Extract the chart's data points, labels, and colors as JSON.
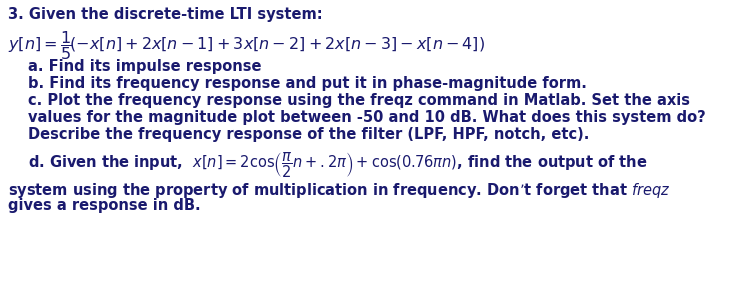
{
  "background_color": "#ffffff",
  "text_color": "#1a1a6e",
  "fig_width": 7.51,
  "fig_height": 3.07,
  "dpi": 100,
  "font_size": 10.5,
  "font_size_eq": 11.5,
  "line1": "3. Given the discrete-time LTI system:",
  "line_a": "   a. Find its impulse response",
  "line_b": "   b. Find its frequency response and put it in phase-magnitude form.",
  "line_c1": "   c. Plot the frequency response using the freqz command in Matlab. Set the axis",
  "line_c2": "   values for the magnitude plot between -50 and 10 dB. What does this system do?",
  "line_c3": "   Describe the frequency response of the filter (LPF, HPF, notch, etc).",
  "line_e1": "system using the property of multiplication in frequency. Don’t forget that ",
  "line_e2": "gives a response in dB."
}
